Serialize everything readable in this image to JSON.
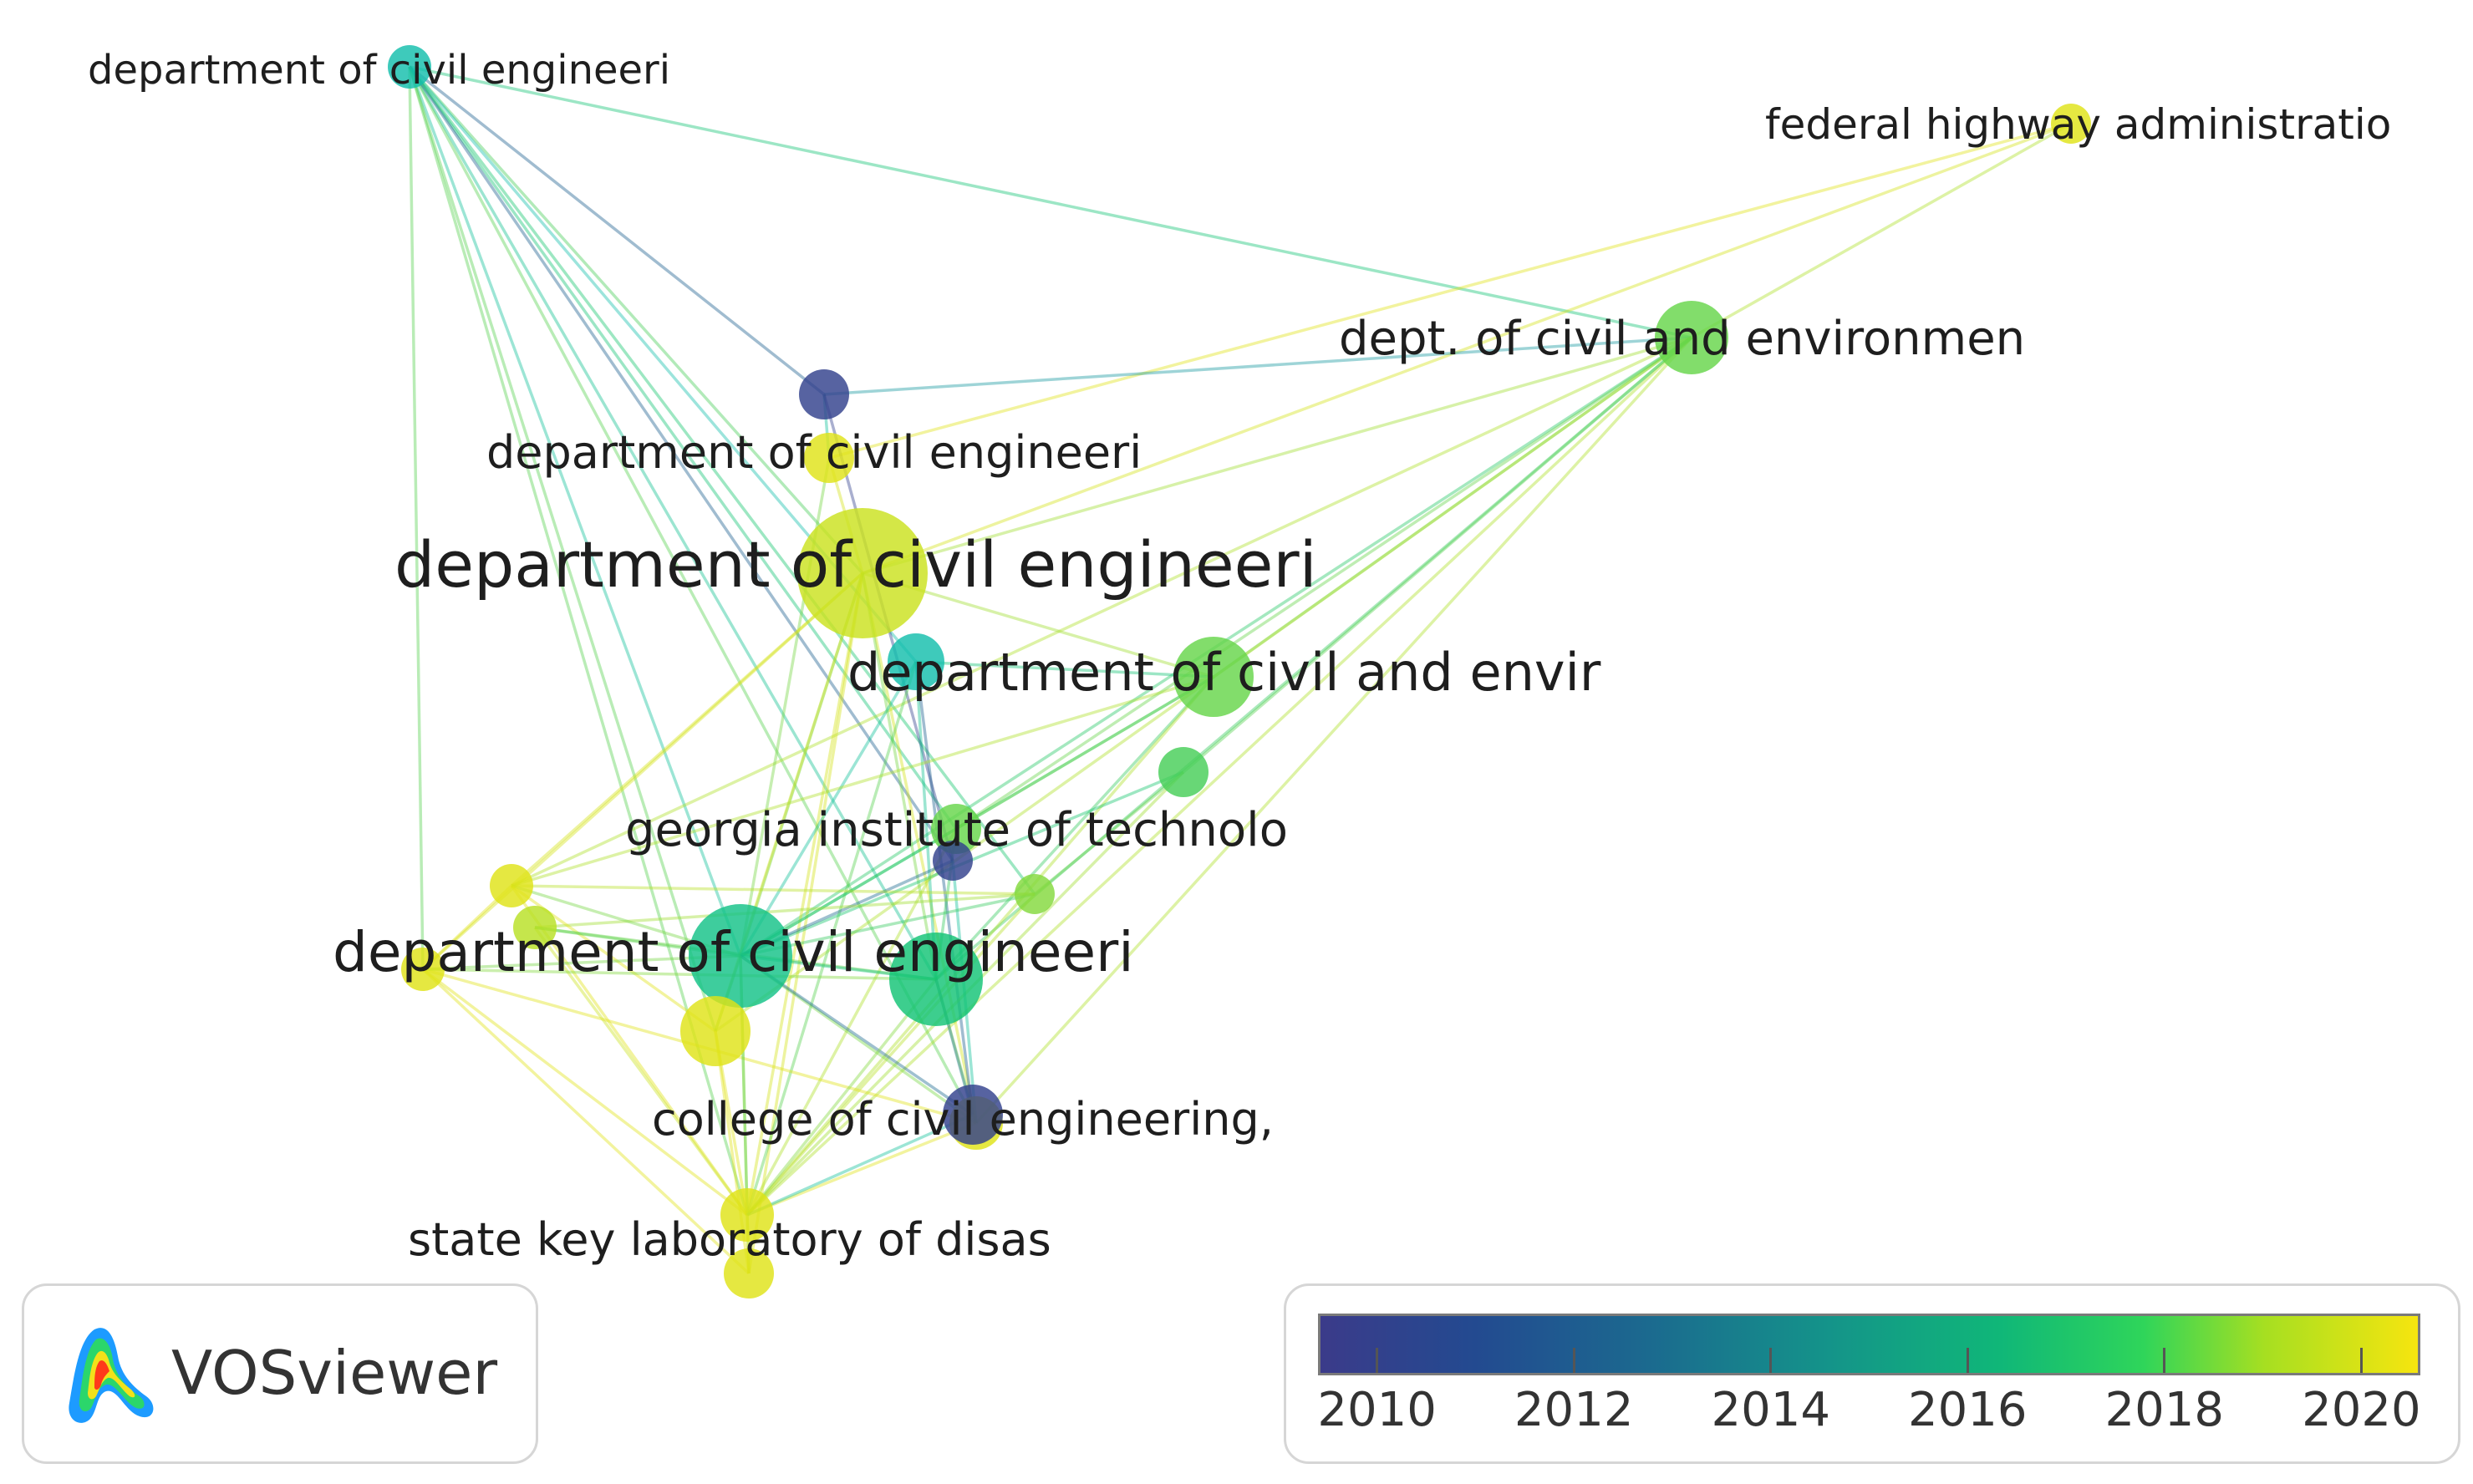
{
  "diagram": {
    "type": "network",
    "nodes": [
      {
        "id": "n_top_left",
        "label": "department of civil engineeri",
        "year": 2014.5,
        "weight": 3
      },
      {
        "id": "n_federal",
        "label": "federal highway administratio",
        "year": 2020,
        "weight": 2
      },
      {
        "id": "n_dept_env",
        "label": "dept. of civil and environmen",
        "year": 2017.5,
        "weight": 5
      },
      {
        "id": "n_purple_top",
        "label": "",
        "year": 2010,
        "weight": 3
      },
      {
        "id": "n_dce_mid",
        "label": "department of civil engineeri",
        "year": 2020,
        "weight": 3
      },
      {
        "id": "n_dce_big",
        "label": "department of civil engineeri",
        "year": 2019.5,
        "weight": 10
      },
      {
        "id": "n_teal_mid",
        "label": "",
        "year": 2014.5,
        "weight": 3
      },
      {
        "id": "n_dce_env",
        "label": "department of civil and envir",
        "year": 2017.5,
        "weight": 5
      },
      {
        "id": "n_green_right",
        "label": "",
        "year": 2017,
        "weight": 3
      },
      {
        "id": "n_georgia",
        "label": "georgia institute of technolo",
        "year": 2017.5,
        "weight": 3
      },
      {
        "id": "n_purple_mid",
        "label": "",
        "year": 2010,
        "weight": 2
      },
      {
        "id": "n_green_small",
        "label": "",
        "year": 2018,
        "weight": 2
      },
      {
        "id": "n_yellow_left",
        "label": "",
        "year": 2020,
        "weight": 2
      },
      {
        "id": "n_yg_left",
        "label": "",
        "year": 2019,
        "weight": 2
      },
      {
        "id": "n_yellow_left2",
        "label": "",
        "year": 2020,
        "weight": 2
      },
      {
        "id": "n_dce_green",
        "label": "department of civil engineeri",
        "year": 2015.5,
        "weight": 7
      },
      {
        "id": "n_green_mid2",
        "label": "",
        "year": 2016,
        "weight": 6
      },
      {
        "id": "n_yellow_mid",
        "label": "",
        "year": 2020,
        "weight": 4
      },
      {
        "id": "n_college",
        "label": "college of civil engineering,",
        "year": 2020,
        "weight": 3
      },
      {
        "id": "n_purple_low",
        "label": "",
        "year": 2010,
        "weight": 3
      },
      {
        "id": "n_state_key",
        "label": "state key laboratory of disas",
        "year": 2020,
        "weight": 3
      },
      {
        "id": "n_yellow_bottom",
        "label": "",
        "year": 2020,
        "weight": 3
      }
    ],
    "links": [
      [
        "n_top_left",
        "n_dept_env"
      ],
      [
        "n_top_left",
        "n_purple_top"
      ],
      [
        "n_top_left",
        "n_dce_big"
      ],
      [
        "n_top_left",
        "n_teal_mid"
      ],
      [
        "n_top_left",
        "n_dce_green"
      ],
      [
        "n_top_left",
        "n_green_mid2"
      ],
      [
        "n_top_left",
        "n_georgia"
      ],
      [
        "n_top_left",
        "n_yellow_left2"
      ],
      [
        "n_top_left",
        "n_state_key"
      ],
      [
        "n_top_left",
        "n_college"
      ],
      [
        "n_top_left",
        "n_purple_mid"
      ],
      [
        "n_top_left",
        "n_yellow_mid"
      ],
      [
        "n_top_left",
        "n_green_small"
      ],
      [
        "n_federal",
        "n_dept_env"
      ],
      [
        "n_federal",
        "n_dce_big"
      ],
      [
        "n_federal",
        "n_dce_mid"
      ],
      [
        "n_dept_env",
        "n_purple_top"
      ],
      [
        "n_dept_env",
        "n_dce_big"
      ],
      [
        "n_dept_env",
        "n_dce_env"
      ],
      [
        "n_dept_env",
        "n_dce_green"
      ],
      [
        "n_dept_env",
        "n_green_mid2"
      ],
      [
        "n_dept_env",
        "n_state_key"
      ],
      [
        "n_dept_env",
        "n_college"
      ],
      [
        "n_dept_env",
        "n_yellow_left"
      ],
      [
        "n_dept_env",
        "n_yellow_mid"
      ],
      [
        "n_dept_env",
        "n_georgia"
      ],
      [
        "n_dept_env",
        "n_green_right"
      ],
      [
        "n_purple_top",
        "n_dce_mid"
      ],
      [
        "n_purple_top",
        "n_purple_mid"
      ],
      [
        "n_dce_mid",
        "n_dce_big"
      ],
      [
        "n_dce_mid",
        "n_dce_green"
      ],
      [
        "n_dce_big",
        "n_dce_green"
      ],
      [
        "n_dce_big",
        "n_state_key"
      ],
      [
        "n_dce_big",
        "n_yellow_left"
      ],
      [
        "n_dce_big",
        "n_yellow_left2"
      ],
      [
        "n_dce_big",
        "n_yellow_mid"
      ],
      [
        "n_dce_big",
        "n_dce_env"
      ],
      [
        "n_dce_big",
        "n_yellow_bottom"
      ],
      [
        "n_dce_big",
        "n_college"
      ],
      [
        "n_dce_big",
        "n_green_mid2"
      ],
      [
        "n_teal_mid",
        "n_dce_green"
      ],
      [
        "n_teal_mid",
        "n_green_mid2"
      ],
      [
        "n_teal_mid",
        "n_state_key"
      ],
      [
        "n_teal_mid",
        "n_dce_env"
      ],
      [
        "n_teal_mid",
        "n_purple_low"
      ],
      [
        "n_dce_env",
        "n_dce_green"
      ],
      [
        "n_dce_env",
        "n_green_mid2"
      ],
      [
        "n_dce_env",
        "n_yellow_left"
      ],
      [
        "n_dce_env",
        "n_state_key"
      ],
      [
        "n_dce_env",
        "n_georgia"
      ],
      [
        "n_green_right",
        "n_dce_green"
      ],
      [
        "n_green_right",
        "n_state_key"
      ],
      [
        "n_green_right",
        "n_green_small"
      ],
      [
        "n_georgia",
        "n_dce_green"
      ],
      [
        "n_georgia",
        "n_green_mid2"
      ],
      [
        "n_georgia",
        "n_state_key"
      ],
      [
        "n_purple_mid",
        "n_dce_green"
      ],
      [
        "n_purple_mid",
        "n_college"
      ],
      [
        "n_green_small",
        "n_dce_green"
      ],
      [
        "n_green_small",
        "n_state_key"
      ],
      [
        "n_green_small",
        "n_yg_left"
      ],
      [
        "n_yellow_left",
        "n_dce_green"
      ],
      [
        "n_yellow_left",
        "n_state_key"
      ],
      [
        "n_yellow_left",
        "n_yellow_left2"
      ],
      [
        "n_yellow_left",
        "n_yellow_mid"
      ],
      [
        "n_yellow_left",
        "n_green_small"
      ],
      [
        "n_yg_left",
        "n_dce_green"
      ],
      [
        "n_yg_left",
        "n_state_key"
      ],
      [
        "n_yg_left",
        "n_green_mid2"
      ],
      [
        "n_yellow_left2",
        "n_dce_green"
      ],
      [
        "n_yellow_left2",
        "n_state_key"
      ],
      [
        "n_yellow_left2",
        "n_yellow_bottom"
      ],
      [
        "n_yellow_left2",
        "n_college"
      ],
      [
        "n_yellow_left2",
        "n_green_mid2"
      ],
      [
        "n_dce_green",
        "n_green_mid2"
      ],
      [
        "n_dce_green",
        "n_yellow_mid"
      ],
      [
        "n_dce_green",
        "n_state_key"
      ],
      [
        "n_dce_green",
        "n_college"
      ],
      [
        "n_dce_green",
        "n_purple_low"
      ],
      [
        "n_dce_green",
        "n_yellow_bottom"
      ],
      [
        "n_green_mid2",
        "n_state_key"
      ],
      [
        "n_green_mid2",
        "n_college"
      ],
      [
        "n_green_mid2",
        "n_purple_low"
      ],
      [
        "n_yellow_mid",
        "n_state_key"
      ],
      [
        "n_yellow_mid",
        "n_yellow_bottom"
      ],
      [
        "n_college",
        "n_state_key"
      ],
      [
        "n_purple_low",
        "n_state_key"
      ],
      [
        "n_state_key",
        "n_yellow_bottom"
      ]
    ]
  },
  "legend": {
    "tick_labels": [
      "2010",
      "2012",
      "2014",
      "2016",
      "2018",
      "2020"
    ],
    "year_min": 2009.4,
    "year_max": 2020.6
  },
  "brand": {
    "name": "VOSviewer"
  },
  "colors": {
    "purple": "#8b85c9",
    "teal": "#1fbfae",
    "green": "#22c46b",
    "light_green": "#7ed84a",
    "yellow": "#f0e41c"
  }
}
